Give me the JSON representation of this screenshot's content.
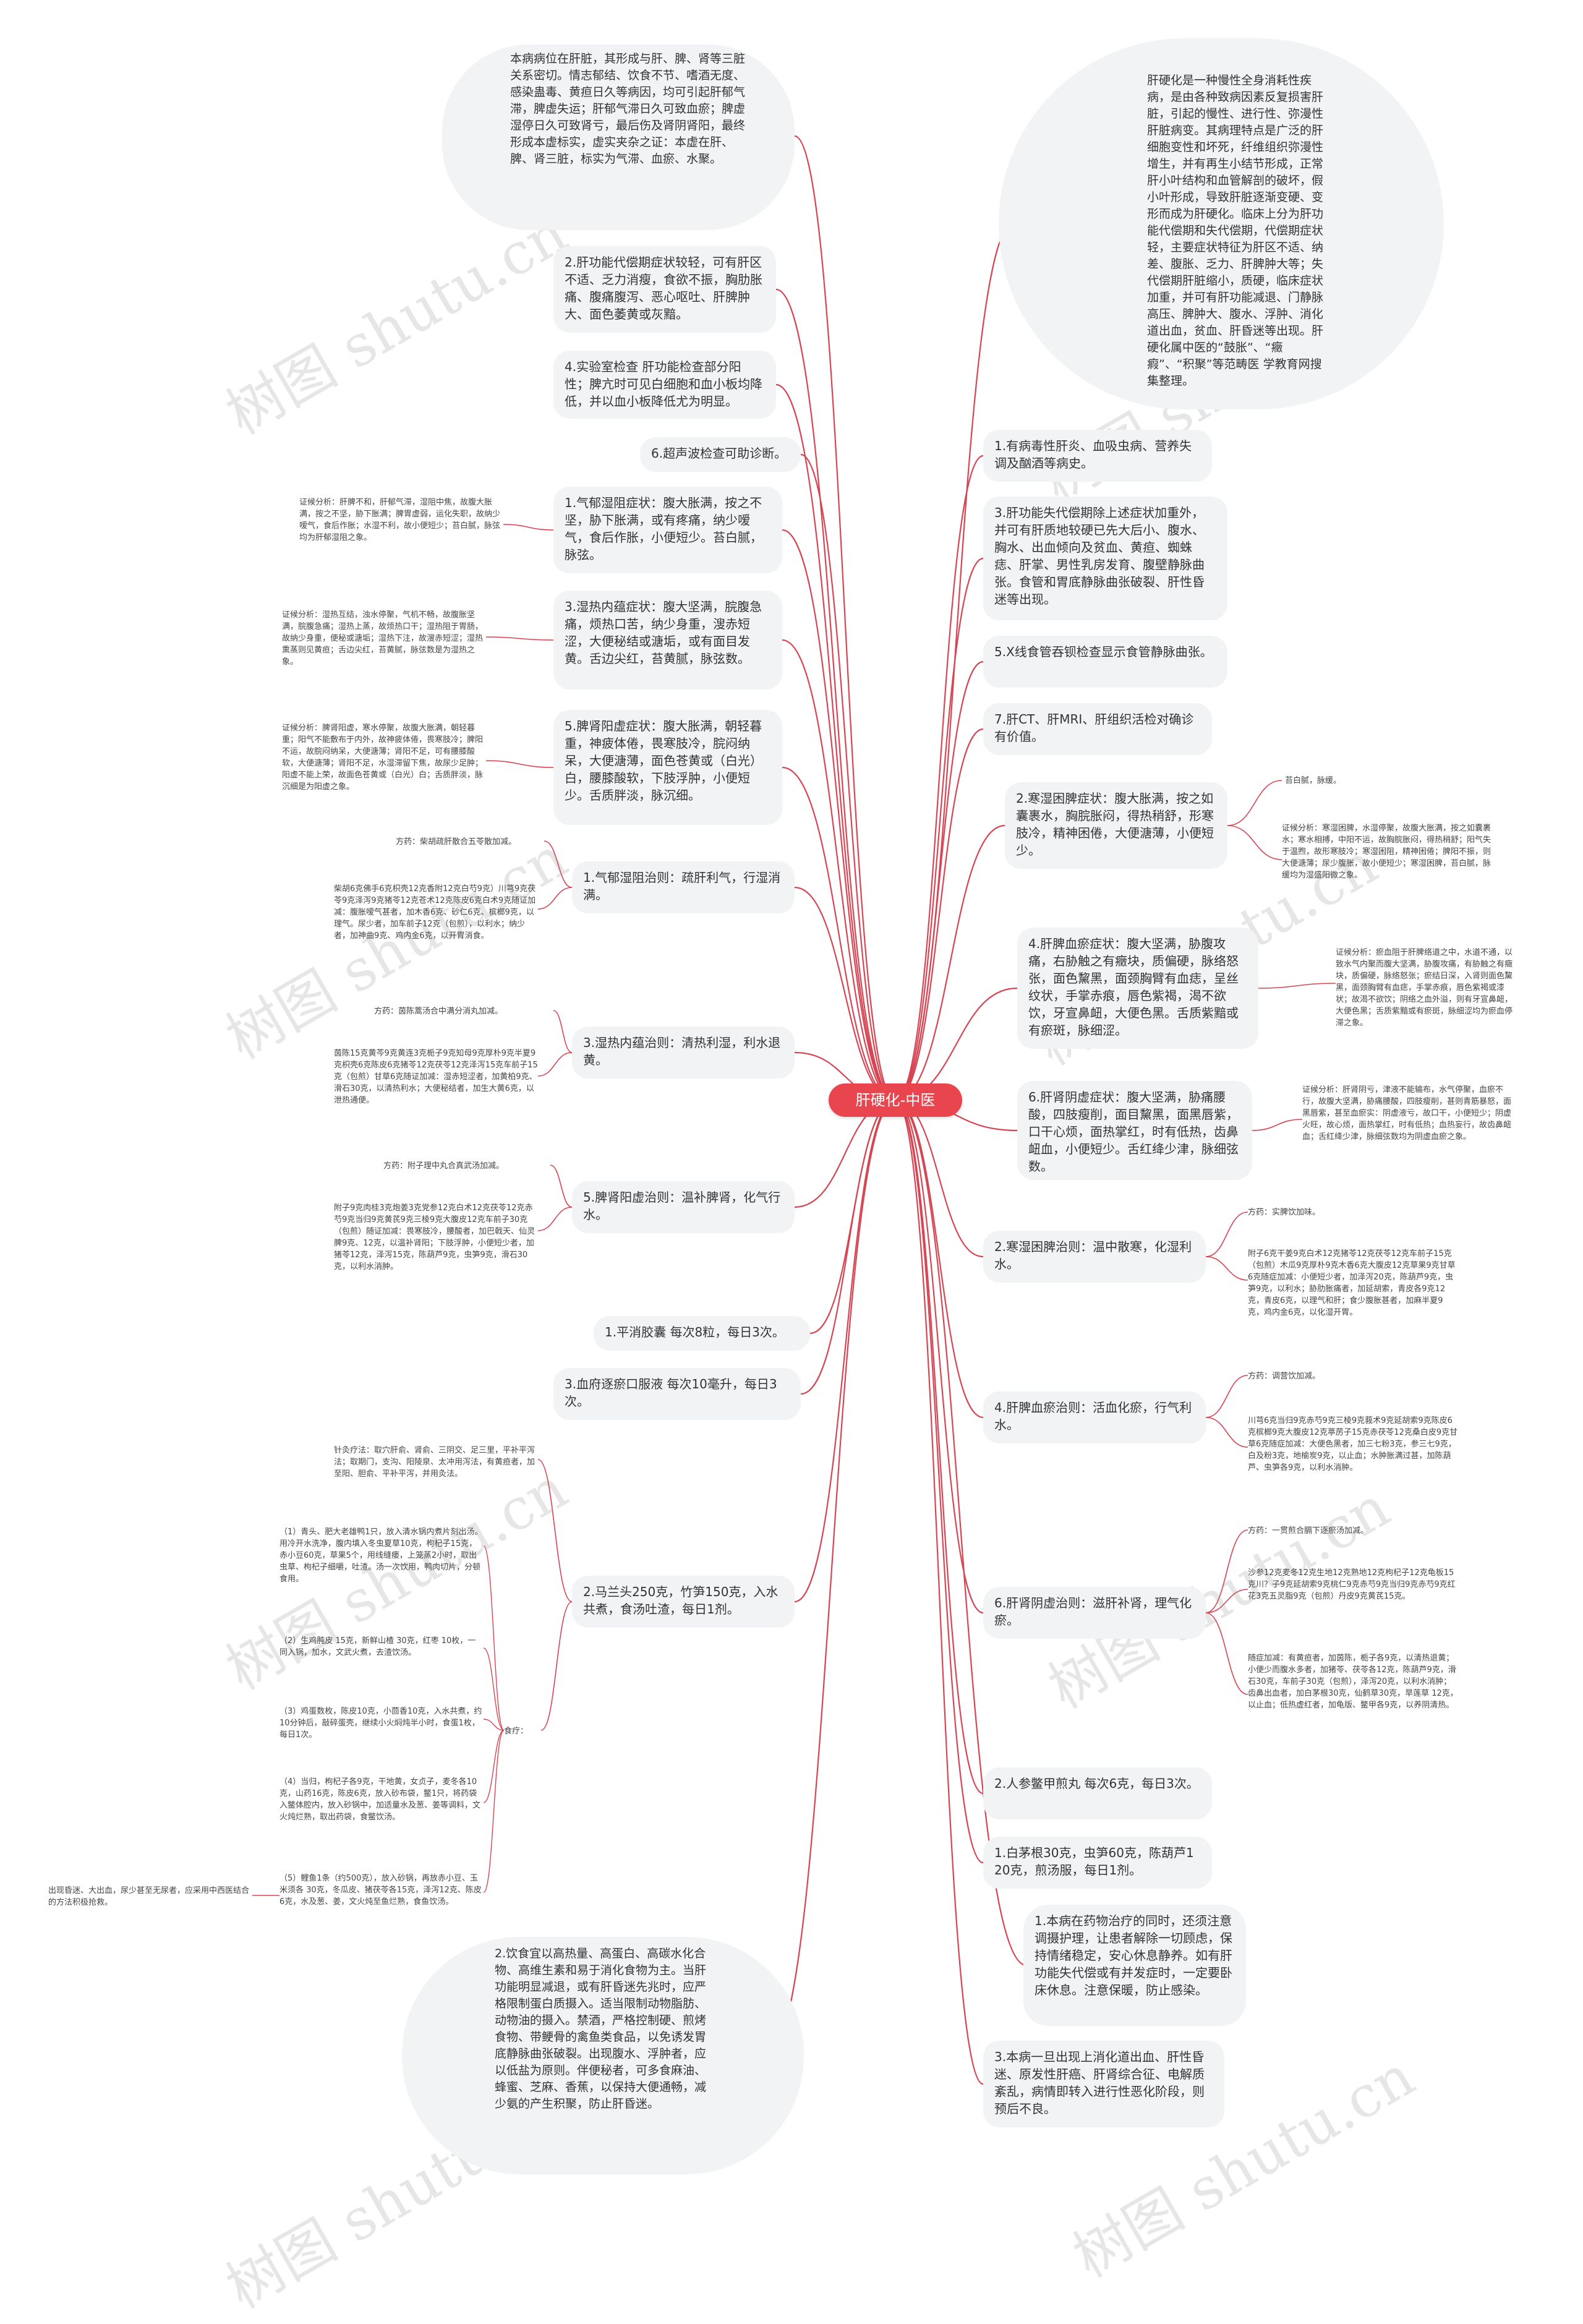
{
  "root": {
    "label": "肝硬化-中医"
  },
  "left_nodes": [
    {
      "id": "L1",
      "text": "本病病位在肝脏，其形成与肝、脾、肾等三脏关系密切。情志郁结、饮食不节、嗜酒无度、感染蛊毒、黄疸日久等病因，均可引起肝郁气滞，脾虚失运；肝郁气滞日久可致血瘀；脾虚湿停日久可致肾亏，最后伤及肾阴肾阳，最终形成本虚标实，虚实夹杂之证：本虚在肝、脾、肾三脏，标实为气滞、血瘀、水聚。"
    },
    {
      "id": "L2",
      "text": "2.肝功能代偿期症状较轻，可有肝区不适、乏力消瘦，食欲不振，胸肋胀痛、腹痛腹泻、恶心呕吐、肝脾肿大、面色萎黄或灰黯。"
    },
    {
      "id": "L3",
      "text": "4.实验室检查 肝功能检查部分阳性；脾亢时可见白细胞和血小板均降低，并以血小板降低尤为明显。"
    },
    {
      "id": "L4",
      "text": "6.超声波检查可助诊断。"
    },
    {
      "id": "L5",
      "text": "1.气郁湿阻症状：腹大胀满，按之不坚，胁下胀满，或有疼痛，纳少嗳气，食后作胀，小便短少。苔白腻，脉弦。"
    },
    {
      "id": "L6",
      "text": "3.湿热内蕴症状：腹大坚满，脘腹急痛，烦热口苦，纳少身重，溲赤短涩，大便秘结或溏垢，或有面目发黄。舌边尖红，苔黄腻，脉弦数。"
    },
    {
      "id": "L7",
      "text": "5.脾肾阳虚症状：腹大胀满，朝轻暮重，神疲体倦，畏寒肢冷，脘闷纳呆，大便溏薄，面色苍黄或（白光）白，腰膝酸软，下肢浮肿，小便短少。舌质胖淡，脉沉细。"
    },
    {
      "id": "L8",
      "text": "1.气郁湿阻治则：疏肝利气，行湿消满。"
    },
    {
      "id": "L9",
      "text": "3.湿热内蕴治则：清热利湿，利水退黄。"
    },
    {
      "id": "L10",
      "text": "5.脾肾阳虚治则：温补脾肾，化气行水。"
    },
    {
      "id": "L11",
      "text": "1.平消胶囊 每次8粒，每日3次。"
    },
    {
      "id": "L12",
      "text": "3.血府逐瘀口服液 每次10毫升，每日3次。"
    },
    {
      "id": "L13",
      "text": "2.马兰头250克，竹笋150克，入水共煮，食汤吐渣，每日1剂。"
    },
    {
      "id": "L14",
      "text": "2.饮食宜以高热量、高蛋白、高碳水化合物、高维生素和易于消化食物为主。当肝功能明显减退，或有肝昏迷先兆时，应严格限制蛋白质摄入。适当限制动物脂肪、动物油的摄入。禁酒，严格控制硬、煎烤食物、带鲠骨的禽鱼类食品，以免诱发胃底静脉曲张破裂。出现腹水、浮肿者，应以低盐为原则。伴便秘者，可多食麻油、蜂蜜、芝麻、香蕉，以保持大便通畅，减少氨的产生积聚，防止肝昏迷。"
    }
  ],
  "left_notes": [
    {
      "id": "N1",
      "text": "证候分析：肝脾不和，肝郁气滞，湿阻中焦，故腹大胀满，按之不坚，胁下胀满；脾胃虚弱，运化失职，故纳少嗳气，食后作胀；水湿不利，故小便短少；苔白腻，脉弦均为肝郁湿阻之象。"
    },
    {
      "id": "N2",
      "text": "证候分析：湿热互结，浊水停聚，气机不畅，故腹胀坚满，脘腹急痛；湿热上蒸，故烦热口干；湿热阻于胃肠，故纳少身重，便秘或溏垢；湿热下注，故溲赤短涩；湿热熏蒸则见黄疸；舌边尖红，苔黄腻，脉弦数是为湿热之象。"
    },
    {
      "id": "N3",
      "text": "证候分析：脾肾阳虚，寒水停聚，故腹大胀满，朝轻暮重；阳气不能敷布于内外，故神疲体倦，畏寒肢冷；脾阳不运，故脘闷纳呆，大便溏薄；肾阳不足，可有腰膝酸软，大便溏薄；肾阳不足，水湿滞留下焦，故尿少足肿；阳虚不能上荣，故面色苍黄或（白光）白；舌质胖淡，脉沉细是为阳虚之象。"
    },
    {
      "id": "N4",
      "text": "方药：柴胡疏肝散合五苓散加减。"
    },
    {
      "id": "N5",
      "text": "柴胡6克佛手6克枳壳12克香附12克白芍9克）川芎9克茯苓9克泽泻9克猪苓12克苍术12克陈皮6克白术9克随证加减：腹胀嗳气甚者，加木香6克、砂仁6克、槟榔9克，以理气。尿少者，加车前子12克（包煎），以利水；纳少者，加神曲9克、鸡内金6克，以开胃消食。"
    },
    {
      "id": "N6",
      "text": "方药：茵陈蒿汤合中满分消丸加减。"
    },
    {
      "id": "N7",
      "text": "茵陈15克黄芩9克黄连3克栀子9克知母9克厚朴9克半夏9克枳壳6克陈皮6克猪苓12克茯苓12克泽泻15克车前子15克（包煎）甘草6克随证加减：湿赤短涩者，加黄柏9克、滑石30克，以清热利水；大便秘结者，加生大黄6克，以泄热通便。"
    },
    {
      "id": "N8",
      "text": "方药：附子理中丸合真武汤加减。"
    },
    {
      "id": "N9",
      "text": "附子9克肉桂3克炮姜3克党参12克白术12克茯苓12克赤芍9克当归9克黄芪9克三棱9克大腹皮12克车前子30克（包煎）随证加减：畏寒肢冷，腰酸者，加巴戟天、仙灵脾9克、12克，以温补肾阳；下肢浮肿，小便短少者，加猪苓12克，泽泻15克，陈葫芦9克，虫笋9克，滑石30克，以利水消肿。"
    },
    {
      "id": "N10",
      "text": "针灸疗法：取穴肝俞、肾俞、三阴交、足三里，平补平泻法；取期门，支沟、阳陵泉、太冲用泻法，有黄疸者，加至阳、胆俞、平补平泻，并用灸法。"
    },
    {
      "id": "N11",
      "text": "（1）青头、肥大老雄鸭1只，放入清水锅内煮片刻出汤。用冷开水洗净，腹内填入冬虫夏草10克，枸杞子15克，赤小豆60克，草果5个，用线缝瘘，上笼蒸2小时，取出虫草、枸杞子细嚼，吐渣。汤一次饮用，鸭肉切片，分顿食用。"
    },
    {
      "id": "N12",
      "text": "（2）生鸡肫皮 15克，新鲜山楂 30克，红枣 10枚，一同入锅，加水，文武火煮，去渣饮汤。"
    },
    {
      "id": "N13",
      "text": "（3）鸡蛋数枚，陈皮10克，小茴香10克，入水共煮，约10分钟后，敲碎蛋壳，继续小火焖炖半小时，食蛋1枚，每日1次。"
    },
    {
      "id": "N14",
      "text": "（4）当归，枸杞子各9克，干地黄，女贞子，麦冬各10克，山药16克，陈皮6克，放入砂布袋，鳖1只，将药袋入鳖体腔内，放入砂锅中，加适量水及葱、姜等调料，文火炖烂熟，取出药袋，食鳖饮汤。"
    },
    {
      "id": "N15",
      "text": "（5）鲤鱼1条（约500克），放入砂锅，再放赤小豆、玉米须各 30克，冬瓜皮、猪茯苓各15克，泽泻12克、陈皮6克，水及葱、姜，文火炖至鱼烂熟，食鱼饮汤。"
    },
    {
      "id": "N16",
      "text": "食疗："
    },
    {
      "id": "N17",
      "text": "出现昏迷、大出血，尿少甚至无尿者，应采用中西医结合的方法积极抢救。"
    }
  ],
  "right_nodes": [
    {
      "id": "R1",
      "text": "肝硬化是一种慢性全身消耗性疾病，是由各种致病因素反复损害肝脏，引起的慢性、进行性、弥漫性肝脏病变。其病理特点是广泛的肝细胞变性和坏死，纤维组织弥漫性增生，并有再生小结节形成，正常肝小叶结构和血管解剖的破坏，假小叶形成，导致肝脏逐渐变硬、变形而成为肝硬化。临床上分为肝功能代偿期和失代偿期，代偿期症状轻，主要症状特征为肝区不适、纳差、腹胀、乏力、肝脾肿大等；失代偿期肝脏缩小，质硬，临床症状加重，并可有肝功能减退、门静脉高压、脾肿大、腹水、浮肿、消化道出血，贫血、肝昏迷等出现。肝硬化属中医的“鼓胀”、“癥瘕”、“积聚”等范畴医 学教育网搜集整理。"
    },
    {
      "id": "R2",
      "text": "1.有病毒性肝炎、血吸虫病、营养失调及酗酒等病史。"
    },
    {
      "id": "R3",
      "text": "3.肝功能失代偿期除上述症状加重外，并可有肝质地较硬已先大后小、腹水、胸水、出血倾向及贫血、黄疸、蜘蛛痣、肝掌、男性乳房发育、腹壁静脉曲张。食管和胃底静脉曲张破裂、肝性昏迷等出现。"
    },
    {
      "id": "R4",
      "text": "5.X线食管吞钡检查显示食管静脉曲张。"
    },
    {
      "id": "R5",
      "text": "7.肝CT、肝MRI、肝组织活检对确诊有价值。"
    },
    {
      "id": "R6",
      "text": "2.寒湿困脾症状：腹大胀满，按之如囊裹水，胸脘胀闷，得热稍舒，形寒肢冷，精神困倦，大便溏薄，小便短少。"
    },
    {
      "id": "R7",
      "text": "4.肝脾血瘀症状：腹大坚满，胁腹攻痛，右胁触之有癥块，质偏硬，脉络怒张，面色黧黑，面颈胸臂有血痣，呈丝纹状，手掌赤痕，唇色紫褐，渴不欲饮，牙宣鼻衄，大便色黑。舌质紫黯或有瘀斑，脉细涩。"
    },
    {
      "id": "R8",
      "text": "6.肝肾阴虚症状：腹大坚满，胁痛腰酸，四肢瘦削，面目黧黑，面黑唇紫，口干心烦，面热掌红，时有低热，齿鼻衄血，小便短少。舌红绛少津，脉细弦数。"
    },
    {
      "id": "R9",
      "text": "2.寒湿困脾治则：温中散寒，化湿利水。"
    },
    {
      "id": "R10",
      "text": "4.肝脾血瘀治则：活血化瘀，行气利水。"
    },
    {
      "id": "R11",
      "text": "6.肝肾阴虚治则：滋肝补肾，理气化瘀。"
    },
    {
      "id": "R12",
      "text": "2.人参鳖甲煎丸 每次6克，每日3次。"
    },
    {
      "id": "R13",
      "text": "1.白茅根30克，虫笋60克，陈葫芦120克，煎汤服，每日1剂。"
    },
    {
      "id": "R14",
      "text": "1.本病在药物治疗的同时，还须注意调摄护理，让患者解除一切顾虑，保持情绪稳定，安心休息静养。如有肝功能失代偿或有并发症时，一定要卧床休息。注意保暖，防止感染。"
    },
    {
      "id": "R15",
      "text": "3.本病一旦出现上消化道出血、肝性昏迷、原发性肝癌、肝肾综合征、电解质紊乱，病情即转入进行性恶化阶段，则预后不良。"
    }
  ],
  "right_notes": [
    {
      "id": "M1",
      "text": "苔白腻，脉缓。"
    },
    {
      "id": "M2",
      "text": "证候分析：寒湿困脾，水湿停聚，故腹大胀满，按之如囊裹水；寒水相搏，中阳不运，故胸脘胀闷，得热稍舒；阳气失于温煦，故形寒肢冷；寒湿困阻，精神困倦；脾阳不振，则大便溏薄；尿少腹胀，故小便短少；寒湿困脾，苔白腻，脉缓均为湿盛阳微之象。"
    },
    {
      "id": "M3",
      "text": "证候分析：瘀血阻于肝脾络道之中，水道不通，以致水气内聚而腹大坚满，胁腹攻痛，有胁触之有癥块，质偏硬，脉络怒张；瘀结日深，入肾则面色黧黑，面颈胸臂有血痣，手掌赤痕，唇色紫褐或漆状；故渴不欲饮；阴络之血外溢，则有牙宣鼻衄，大便色黑；舌质紫黯或有瘀斑，脉细涩均为瘀血停滞之象。"
    },
    {
      "id": "M4",
      "text": "证候分析：肝肾阴亏，津液不能输布，水气停聚，血瘀不行，故腹大坚满，胁痛腰酸，四肢瘦削，甚则青筋暴怒，面黑唇紫，甚至血瘀实：阴虚液亏，故口干，小便短少；阴虚火旺，故心烦，面热掌红，时有低热；血热妄行，故齿鼻衄血；舌红绛少津，脉细弦数均为阴虚血瘀之象。"
    },
    {
      "id": "M5",
      "text": "方药：实脾饮加味。"
    },
    {
      "id": "M6",
      "text": "附子6克干姜9克白术12克猪苓12克茯苓12克车前子15克（包煎）木瓜9克厚朴9克木香6克大腹皮12克草果9克甘草6克随症加减：小便短少者，加泽泻20克，陈葫芦9克，虫笋9克，以利水；胁肋胀痛者，加延胡索，青皮各9克12克，青皮6克，以理气和肝；食少腹胀甚者，加麻半夏9克，鸡内金6克，以化湿开胃。"
    },
    {
      "id": "M7",
      "text": "方药：调营饮加减。"
    },
    {
      "id": "M8",
      "text": "川芎6克当归9克赤芍9克三棱9克莪术9克延胡索9克陈皮6克槟榔9克大腹皮12克葶苈子15克赤茯苓12克桑白皮9克甘草6克随症加减：大便色黑者，加三七粉3克，参三七9克，白及粉3克，地榆炭9克，以止血；水肿胀满过甚，加陈葫芦、虫笋各9克，以利水消肿。"
    },
    {
      "id": "M9",
      "text": "方药：一贯煎合膈下逐瘀汤加减。"
    },
    {
      "id": "M10",
      "text": "沙参12克麦冬12克生地12克熟地12克枸杞子12克龟板15克川？子9克延胡索9克桃仁9克赤芍9克当归9克赤芍9克红花3克五灵脂9克（包煎）丹皮9克黄芪15克。"
    },
    {
      "id": "M11",
      "text": "随症加减：有黄疸者，加茵陈，栀子各9克，以清热退黄；小便少而腹水多者，加猪苓、茯苓各12克，陈葫芦9克，滑石30克，车前子30克（包煎），泽泻20克，以利水消肿；齿鼻出血者，加白茅根30克，仙鹤草30克，旱莲草 12克，以止血；低热虚红者，加龟版、鳖甲各9克，以养阴清热。"
    }
  ],
  "watermark": "树图 shutu.cn",
  "colors": {
    "line": "#d64553",
    "root": "#e8454f",
    "node_bg": "#f1f3f5"
  }
}
